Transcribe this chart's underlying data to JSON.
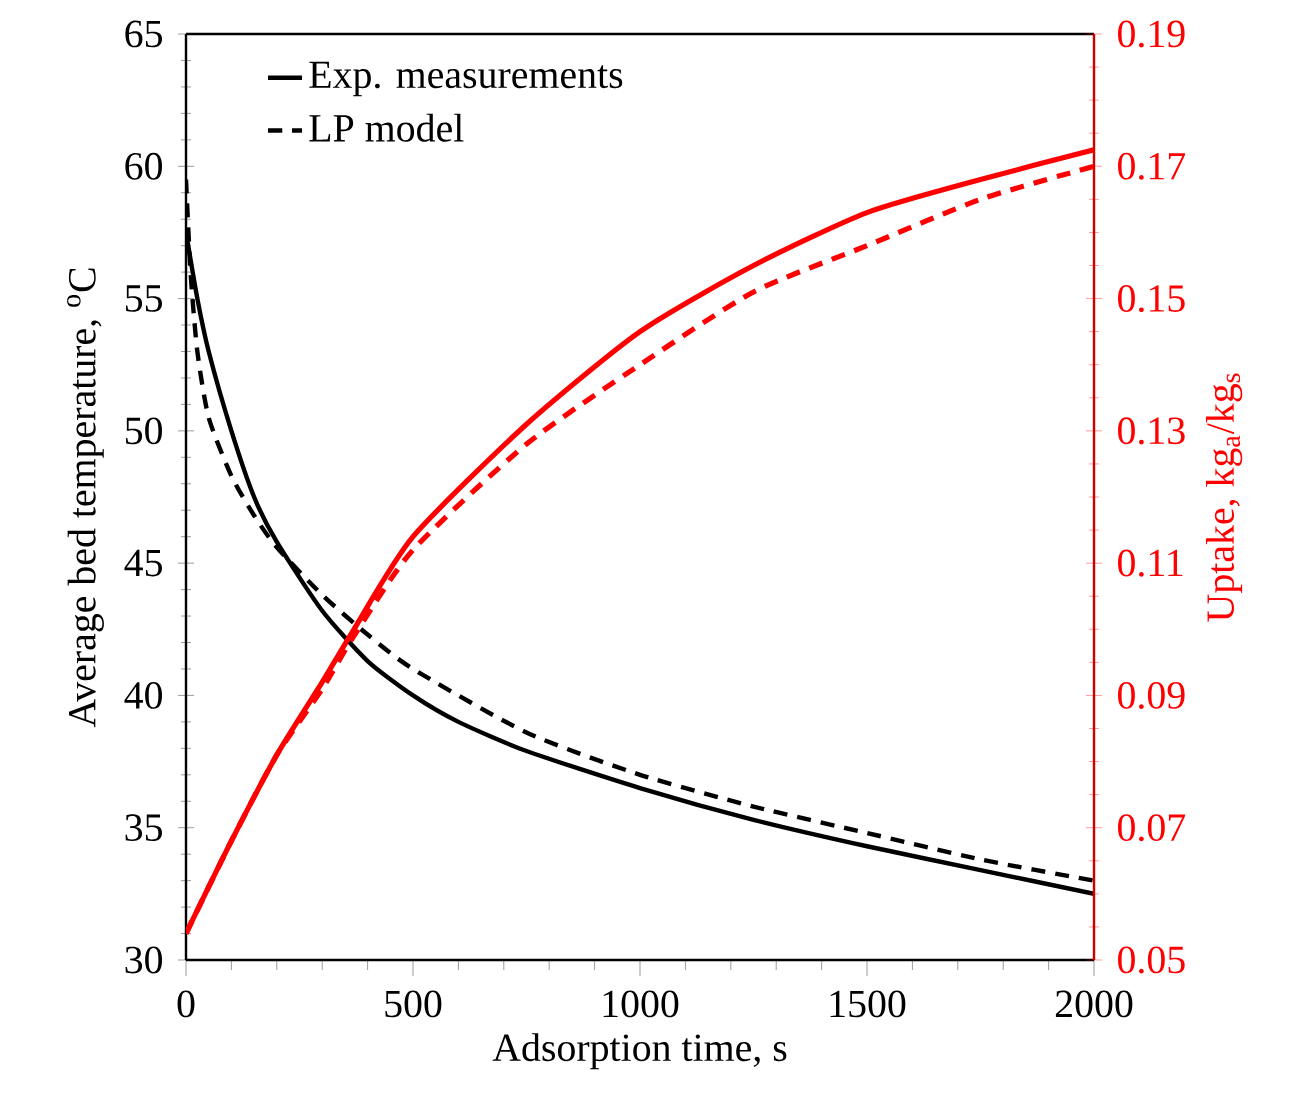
{
  "chart_data": {
    "type": "line",
    "xlabel": "Adsorption time, s",
    "ylabel": "Average bed temperature, $^{o}$C",
    "y2label": "Uptake, kg$_{a}$/kg$_{s}$",
    "xlim": [
      0,
      2000
    ],
    "xticks": [
      0,
      500,
      1000,
      1500,
      2000
    ],
    "ylim": [
      30,
      65
    ],
    "yticks": [
      30,
      35,
      40,
      45,
      50,
      55,
      60,
      65
    ],
    "y2lim": [
      0.05,
      0.19
    ],
    "y2ticks": [
      0.05,
      0.07,
      0.09,
      0.11,
      0.13,
      0.15,
      0.17,
      0.19
    ],
    "legend": "top left",
    "marker": "none",
    "series": [
      {
        "name": "Exp. measurements",
        "color": "#000000",
        "line_style": "solid",
        "x": [
          0,
          25,
          50,
          100,
          150,
          200,
          300,
          400,
          500,
          600,
          750,
          1000,
          1250,
          1500,
          1750,
          2000
        ],
        "values": [
          57.5,
          55,
          53,
          50,
          47.5,
          45.8,
          43.2,
          41.3,
          40.0,
          39.0,
          37.9,
          36.5,
          35.3,
          34.3,
          33.4,
          32.5
        ]
      },
      {
        "name": "LP model",
        "color": "#000000",
        "line_style": "dashed",
        "x": [
          0,
          10,
          25,
          50,
          100,
          150,
          200,
          300,
          400,
          500,
          750,
          1000,
          1250,
          1500,
          1750,
          2000
        ],
        "values": [
          59.5,
          56,
          53,
          50.5,
          48.3,
          46.8,
          45.6,
          43.8,
          42.3,
          41.0,
          38.6,
          37.0,
          35.8,
          34.8,
          33.8,
          33.0
        ]
      },
      {
        "color": "#ff0000",
        "axis": "y2",
        "line_style": "solid",
        "x": [
          0,
          100,
          200,
          300,
          370,
          500,
          750,
          1000,
          1250,
          1500,
          1750,
          2000
        ],
        "values": [
          0.054,
          0.068,
          0.081,
          0.092,
          0.1,
          0.114,
          0.131,
          0.145,
          0.155,
          0.163,
          0.168,
          0.1725
        ]
      },
      {
        "color": "#ff0000",
        "axis": "y2",
        "line_style": "dashed",
        "x": [
          0,
          100,
          200,
          300,
          370,
          500,
          750,
          1000,
          1250,
          1500,
          1750,
          2000
        ],
        "values": [
          0.054,
          0.068,
          0.081,
          0.091,
          0.099,
          0.112,
          0.128,
          0.14,
          0.151,
          0.158,
          0.165,
          0.17
        ]
      }
    ]
  }
}
